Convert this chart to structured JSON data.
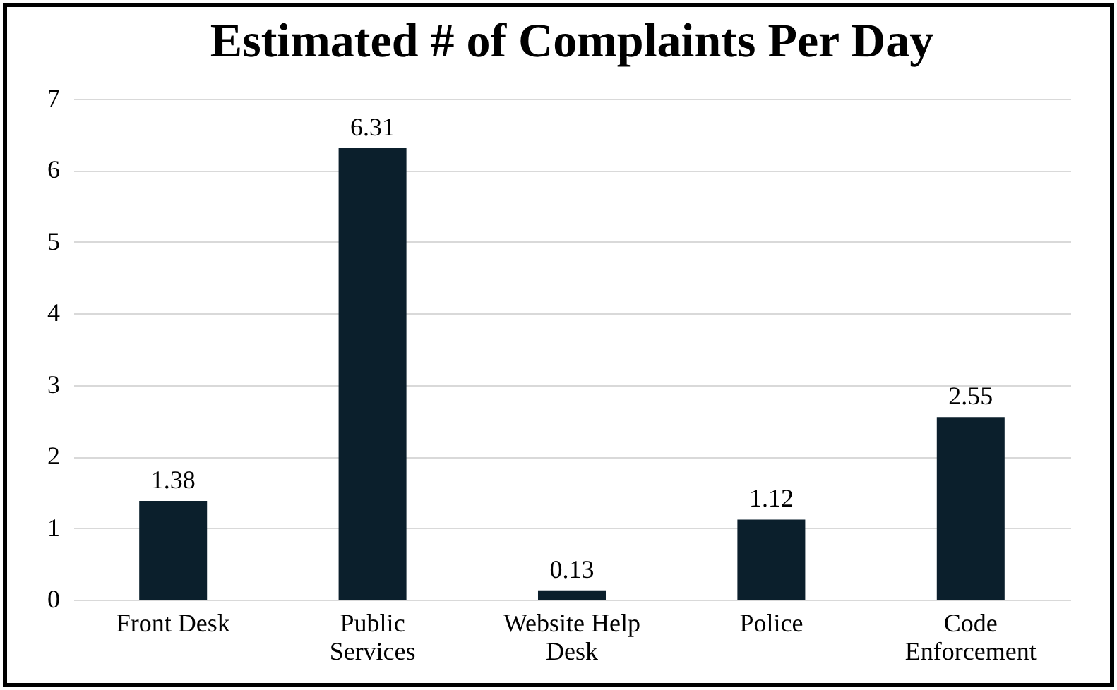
{
  "chart_data": {
    "type": "bar",
    "title": "Estimated # of Complaints Per Day",
    "categories": [
      "Front Desk",
      "Public Services",
      "Website Help Desk",
      "Police",
      "Code Enforcement"
    ],
    "values": [
      1.38,
      6.31,
      0.13,
      1.12,
      2.55
    ],
    "color": "#0b1f2c",
    "ylim": [
      0,
      7
    ],
    "yticks": [
      0,
      1,
      2,
      3,
      4,
      5,
      6,
      7
    ],
    "grid": "y",
    "data_labels": true
  }
}
